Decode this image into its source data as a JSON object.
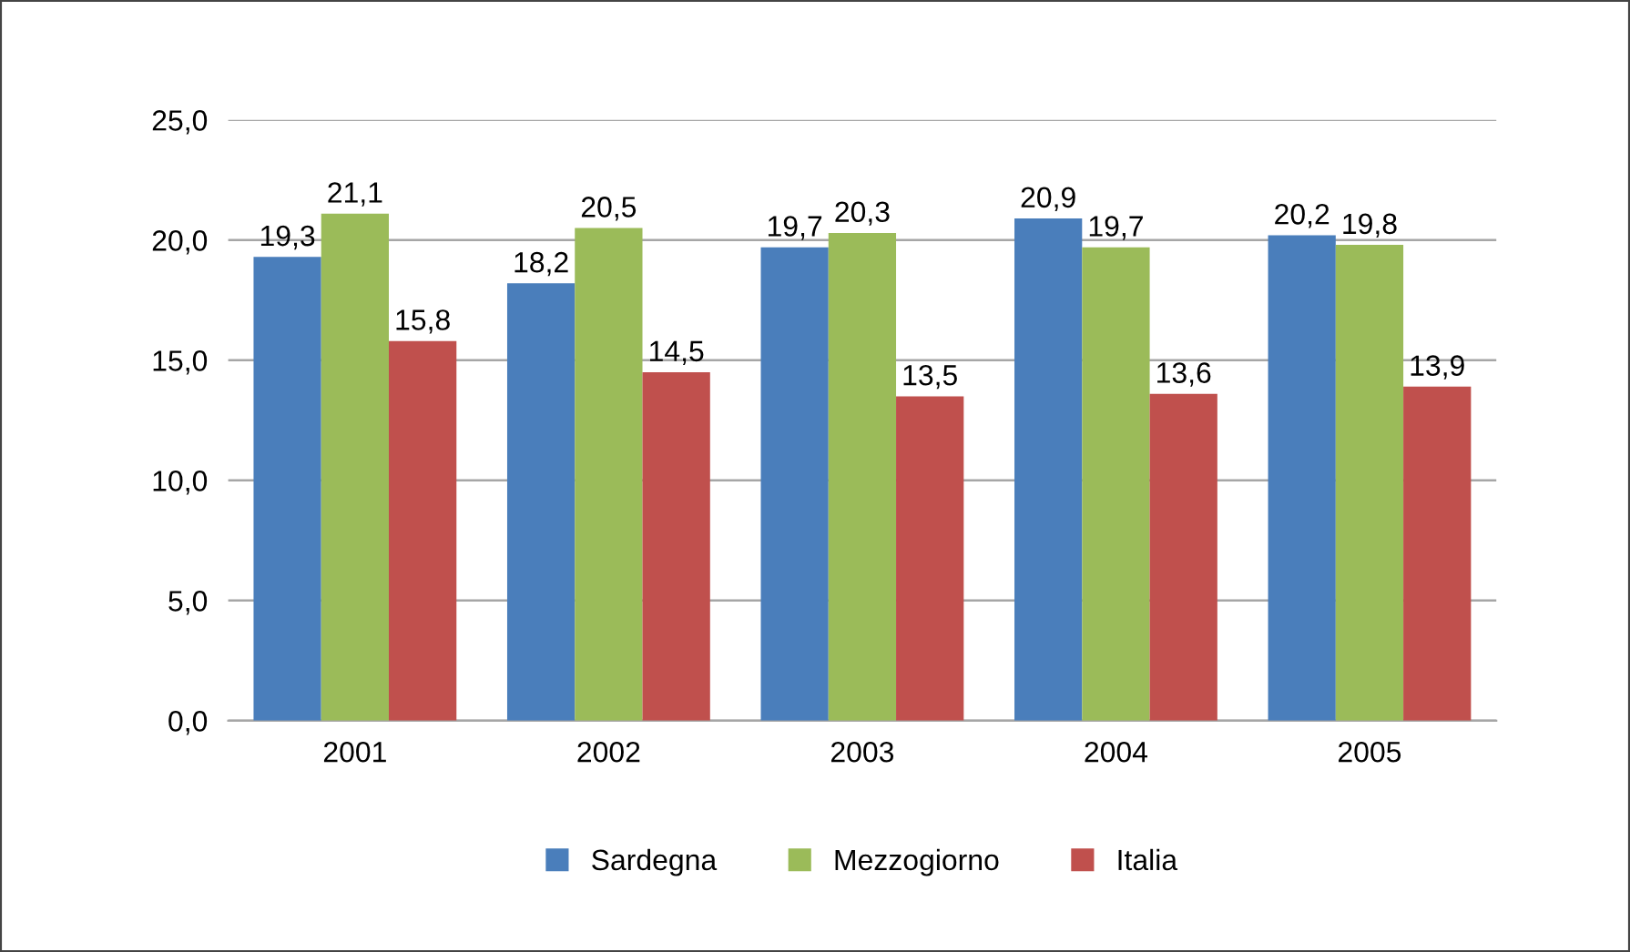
{
  "chart_data": {
    "type": "bar",
    "categories": [
      "2001",
      "2002",
      "2003",
      "2004",
      "2005"
    ],
    "series": [
      {
        "name": "Sardegna",
        "color": "#4a7ebb",
        "values": [
          19.3,
          18.2,
          19.7,
          20.9,
          20.2
        ],
        "value_labels": [
          "19,3",
          "18,2",
          "19,7",
          "20,9",
          "20,2"
        ]
      },
      {
        "name": "Mezzogiorno",
        "color": "#9bbb59",
        "values": [
          21.1,
          20.5,
          20.3,
          19.7,
          19.8
        ],
        "value_labels": [
          "21,1",
          "20,5",
          "20,3",
          "19,7",
          "19,8"
        ]
      },
      {
        "name": "Italia",
        "color": "#c0504d",
        "values": [
          15.8,
          14.5,
          13.5,
          13.6,
          13.9
        ],
        "value_labels": [
          "15,8",
          "14,5",
          "13,5",
          "13,6",
          "13,9"
        ]
      }
    ],
    "ylim": [
      0,
      25
    ],
    "yticks": [
      {
        "value": 0,
        "label": "0,0"
      },
      {
        "value": 5,
        "label": "5,0"
      },
      {
        "value": 10,
        "label": "10,0"
      },
      {
        "value": 15,
        "label": "15,0"
      },
      {
        "value": 20,
        "label": "20,0"
      },
      {
        "value": 25,
        "label": "25,0"
      }
    ],
    "grid": "y",
    "legend": "bottom"
  }
}
